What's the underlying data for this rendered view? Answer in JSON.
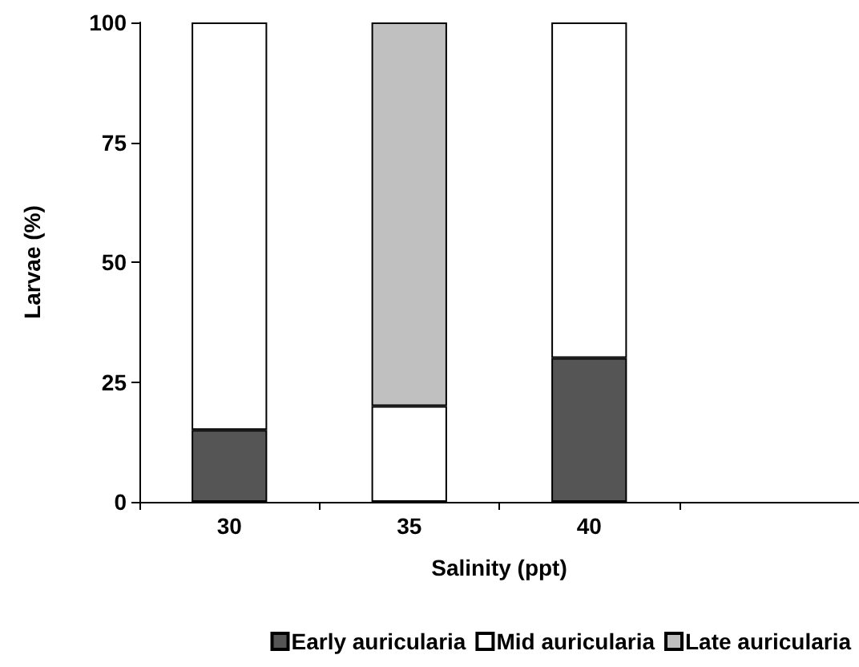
{
  "chart_data": {
    "type": "bar",
    "stacked": true,
    "xlabel": "Salinity (ppt)",
    "ylabel": "Larvae (%)",
    "categories": [
      "30",
      "35",
      "40",
      null
    ],
    "series": [
      {
        "name": "Early auricularia",
        "color": "#555555",
        "values": [
          15,
          null,
          30,
          null
        ]
      },
      {
        "name": "Mid auricularia",
        "color": "#ffffff",
        "values": [
          85,
          20,
          70,
          null
        ]
      },
      {
        "name": "Late auricularia",
        "color": "#c0c0c0",
        "values": [
          null,
          80,
          null,
          null
        ]
      }
    ],
    "ylim": [
      0,
      100
    ],
    "yticks": [
      0,
      25,
      50,
      75,
      100
    ],
    "grid": false,
    "legend": "bottom"
  }
}
